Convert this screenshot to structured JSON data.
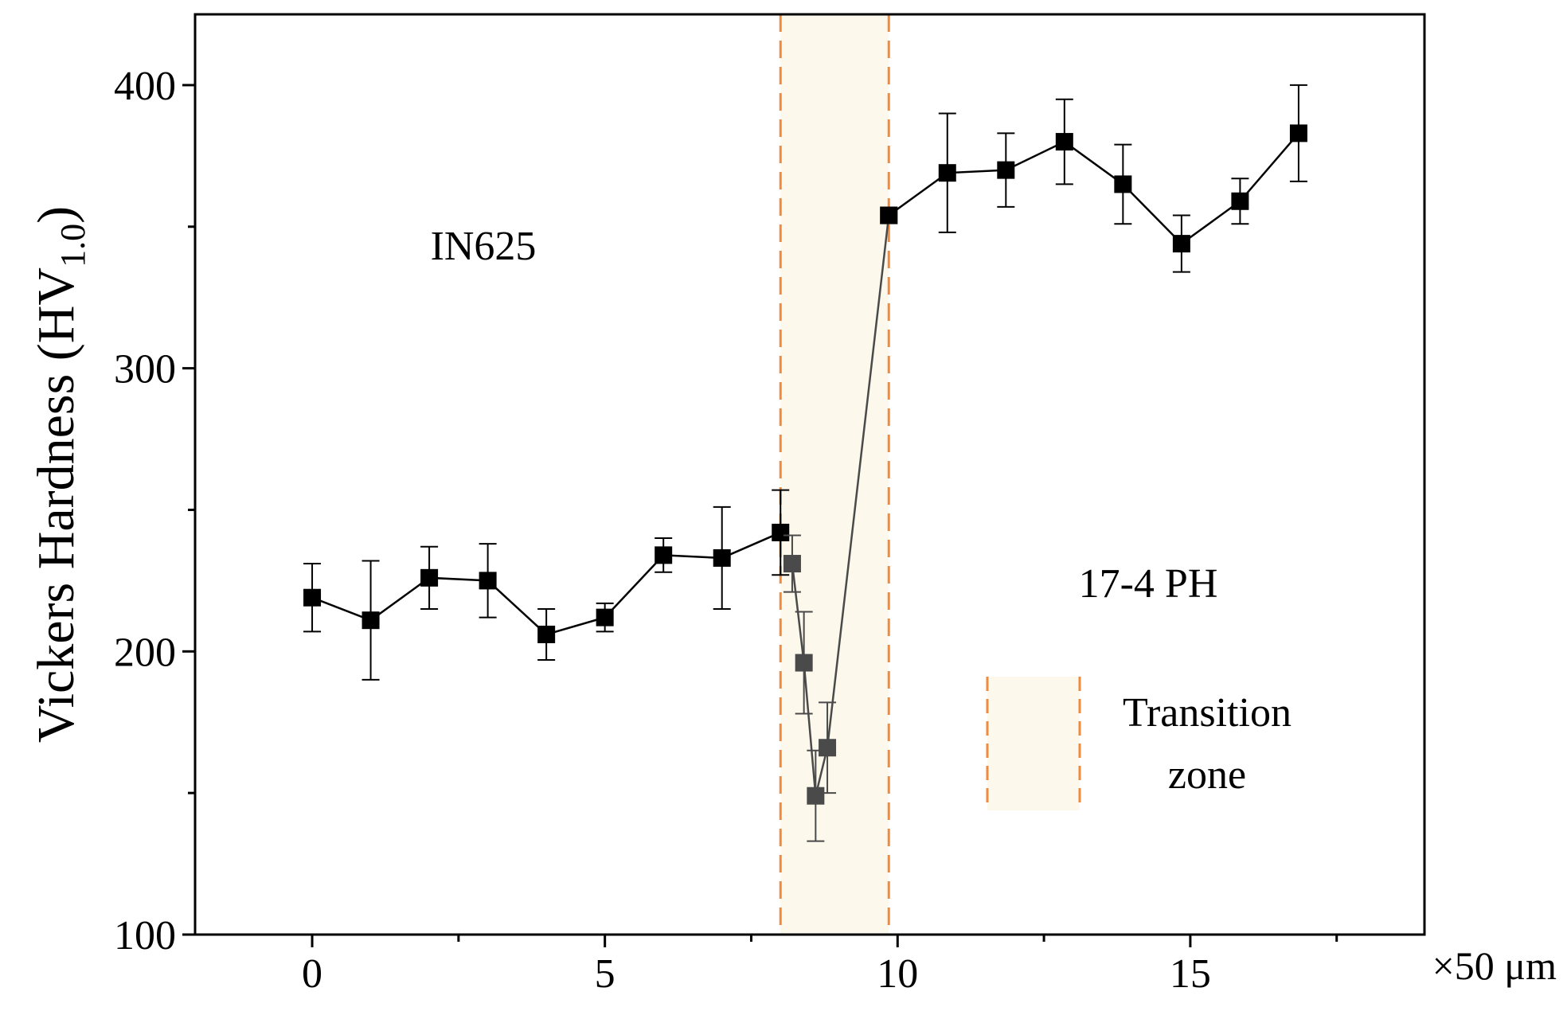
{
  "chart_data": {
    "type": "line",
    "ylabel_main": "Vickers Hardness (HV",
    "ylabel_sub": "1.0",
    "ylabel_close": ")",
    "xunit": "×50 μm",
    "xlim": [
      -2,
      19
    ],
    "ylim": [
      100,
      425
    ],
    "xticks": [
      0,
      5,
      10,
      15
    ],
    "xtick_labels": [
      "0",
      "5",
      "10",
      "15"
    ],
    "xminor": [
      2.5,
      7.5,
      12.5,
      17.5
    ],
    "yticks": [
      100,
      200,
      300,
      400
    ],
    "ytick_labels": [
      "100",
      "200",
      "300",
      "400"
    ],
    "yminor": [
      150,
      250,
      350
    ],
    "grid": false,
    "transition_zone": {
      "x_start": 8.0,
      "x_end": 9.85,
      "fill": "#fdf8ec",
      "line_color": "#f08a3c"
    },
    "series": [
      {
        "color": "#000000",
        "points": [
          {
            "x": 0,
            "y": 219,
            "err": 12
          },
          {
            "x": 1,
            "y": 211,
            "err": 21
          },
          {
            "x": 2,
            "y": 226,
            "err": 11
          },
          {
            "x": 3,
            "y": 225,
            "err": 13
          },
          {
            "x": 4,
            "y": 206,
            "err": 9
          },
          {
            "x": 5,
            "y": 212,
            "err": 5
          },
          {
            "x": 6,
            "y": 234,
            "err": 6
          },
          {
            "x": 7,
            "y": 233,
            "err": 18
          },
          {
            "x": 8,
            "y": 242,
            "err": 15
          }
        ]
      },
      {
        "color": "#4a4a4a",
        "points": [
          {
            "x": 8.2,
            "y": 231,
            "err": 10
          },
          {
            "x": 8.4,
            "y": 196,
            "err": 18
          },
          {
            "x": 8.6,
            "y": 149,
            "err": 16
          },
          {
            "x": 8.8,
            "y": 166,
            "err": 16
          },
          {
            "x": 9.85,
            "y": 354,
            "err": 0
          }
        ]
      },
      {
        "color": "#000000",
        "points": [
          {
            "x": 9.85,
            "y": 354,
            "err": 0
          },
          {
            "x": 10.85,
            "y": 369,
            "err": 21
          },
          {
            "x": 11.85,
            "y": 370,
            "err": 13
          },
          {
            "x": 12.85,
            "y": 380,
            "err": 15
          },
          {
            "x": 13.85,
            "y": 365,
            "err": 14
          },
          {
            "x": 14.85,
            "y": 344,
            "err": 10
          },
          {
            "x": 15.85,
            "y": 359,
            "err": 8
          },
          {
            "x": 16.85,
            "y": 383,
            "err": 17
          }
        ]
      }
    ],
    "annotations": [
      {
        "text": "IN625",
        "x": 3.3,
        "y": 344
      },
      {
        "text": "17-4 PH",
        "x": 14.0,
        "y": 223
      }
    ],
    "legend": {
      "position": "bottom-right",
      "line1": "Transition",
      "line2": "zone"
    }
  }
}
